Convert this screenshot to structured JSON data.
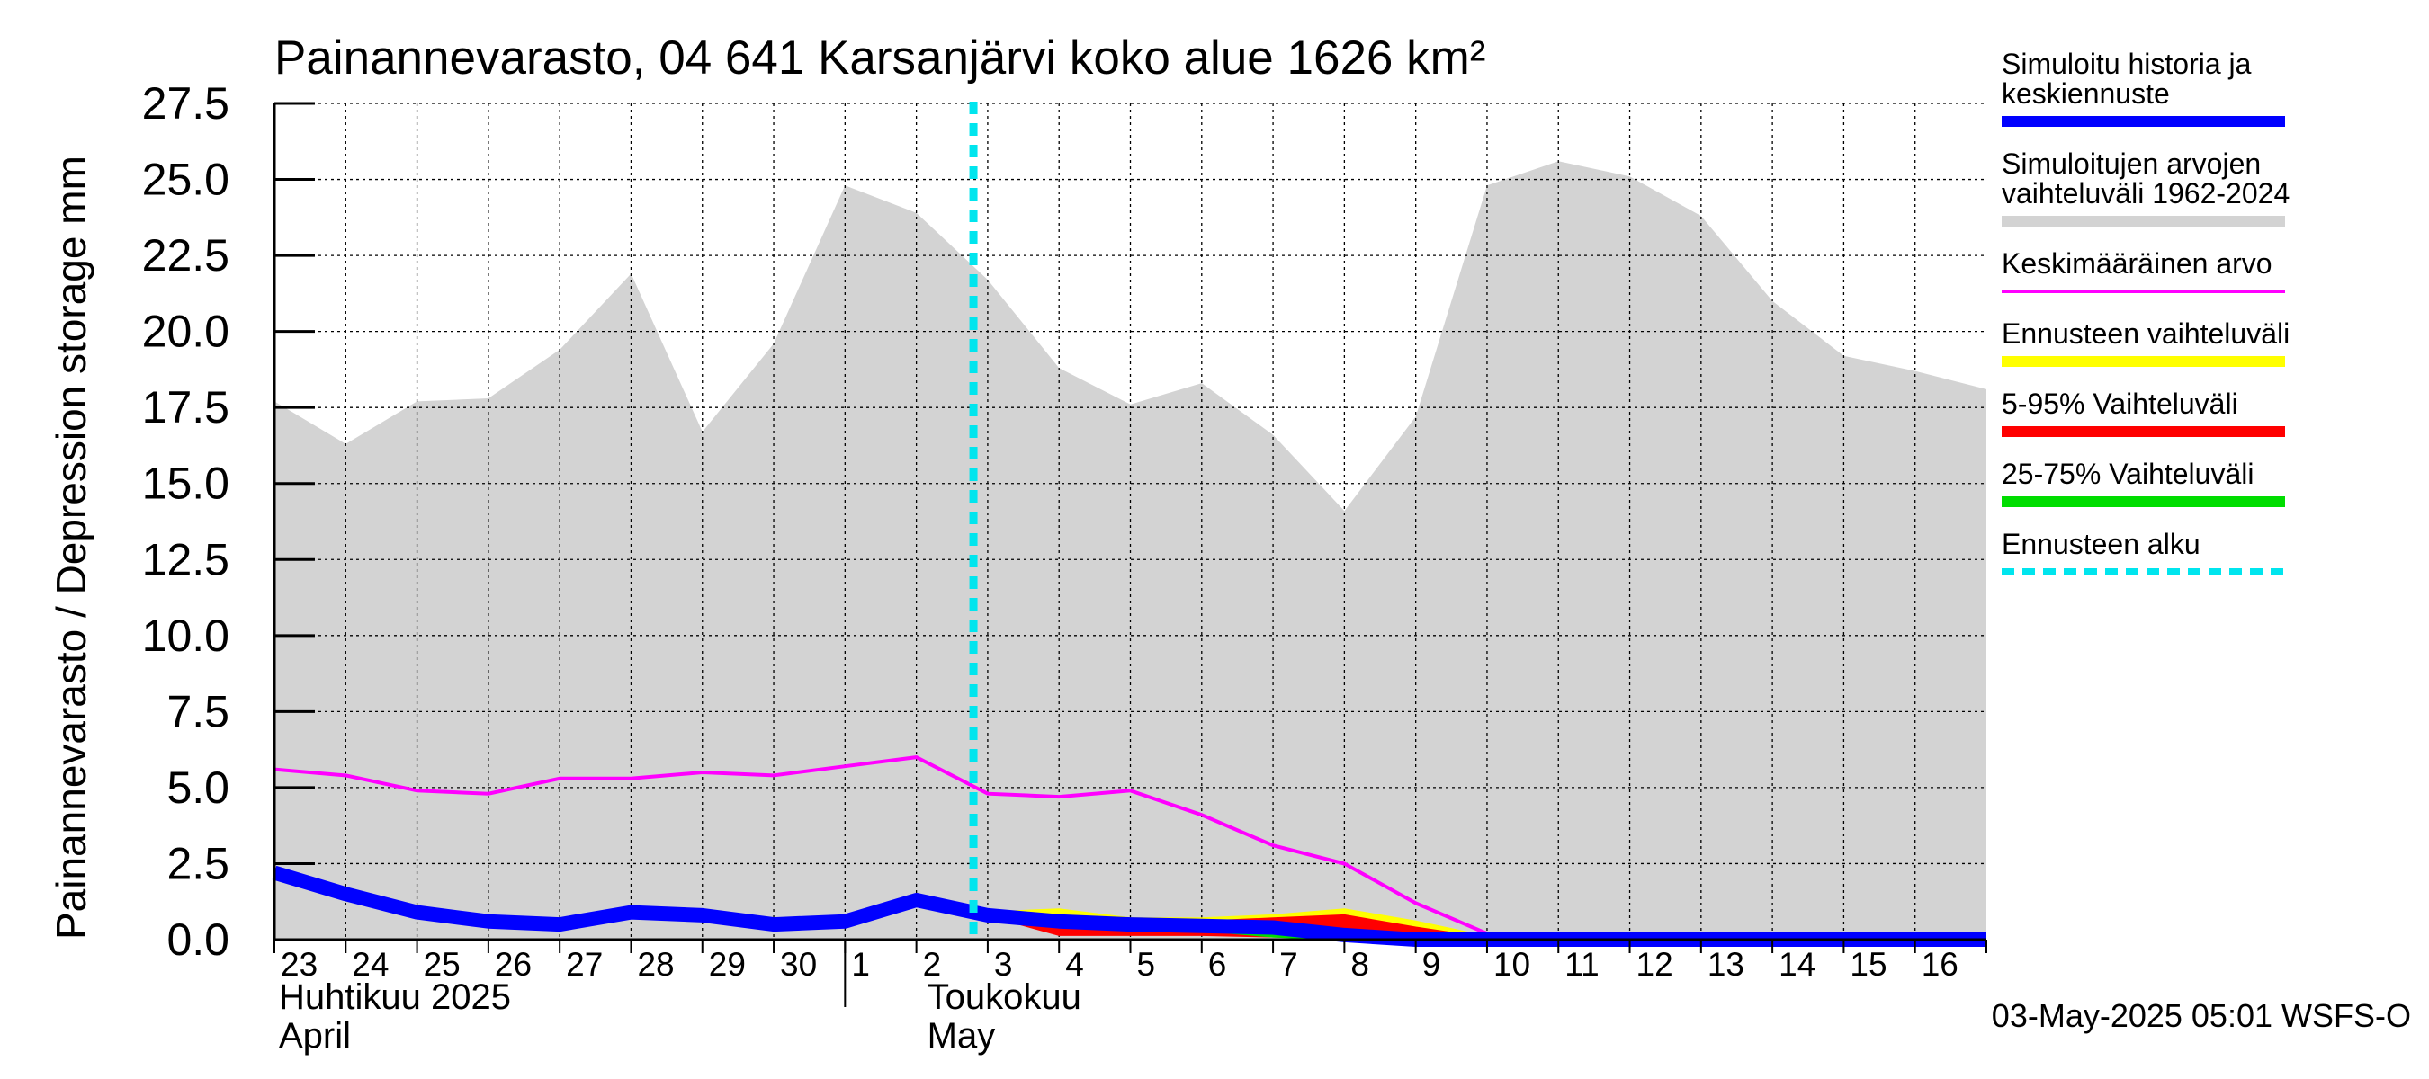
{
  "chart_data": {
    "type": "area",
    "title": "Painannevarasto, 04 641 Karsanjärvi koko alue 1626 km²",
    "ylabel": "Painannevarasto / Depression storage    mm",
    "ylim": [
      0,
      27.5
    ],
    "yticks": [
      "0.0",
      "2.5",
      "5.0",
      "7.5",
      "10.0",
      "12.5",
      "15.0",
      "17.5",
      "20.0",
      "22.5",
      "25.0",
      "27.5"
    ],
    "x_day_labels": [
      "23",
      "24",
      "25",
      "26",
      "27",
      "28",
      "29",
      "30",
      "1",
      "2",
      "3",
      "4",
      "5",
      "6",
      "7",
      "8",
      "9",
      "10",
      "11",
      "12",
      "13",
      "14",
      "15",
      "16"
    ],
    "month_labels": [
      {
        "fi": "Huhtikuu  2025",
        "en": "April"
      },
      {
        "fi": "Toukokuu",
        "en": "May"
      }
    ],
    "grid": true,
    "legend_position": "right",
    "forecast_start_index": 10,
    "series": [
      {
        "key": "range",
        "name": "Simuloitujen arvojen vaihteluväli 1962-2024",
        "color": "#d3d3d3",
        "upper": [
          17.7,
          16.3,
          17.7,
          17.8,
          19.4,
          21.9,
          16.7,
          19.6,
          24.8,
          23.9,
          21.7,
          18.8,
          17.6,
          18.3,
          16.6,
          14.1,
          17.2,
          24.8,
          25.6,
          25.1,
          23.8,
          21.0,
          19.2,
          18.7,
          18.1
        ],
        "lower": [
          0,
          0,
          0,
          0,
          0,
          0,
          0,
          0,
          0,
          0,
          0,
          0,
          0,
          0,
          0,
          0,
          0,
          0,
          0,
          0,
          0,
          0,
          0,
          0,
          0
        ]
      },
      {
        "key": "mean",
        "name": "Keskimääräinen arvo",
        "color": "#ff00ff",
        "values": [
          5.6,
          5.4,
          4.9,
          4.8,
          5.3,
          5.3,
          5.5,
          5.4,
          5.7,
          6.0,
          4.8,
          4.7,
          4.9,
          4.1,
          3.1,
          2.5,
          1.2,
          0.2,
          0.0,
          0.0,
          0.0,
          0.0,
          0.0,
          0.0,
          0.0
        ]
      },
      {
        "key": "forecast_range",
        "name": "Ennusteen vaihteluväli",
        "color": "#ffff00",
        "start_index": 10,
        "upper": [
          0.9,
          1.0,
          0.7,
          0.7,
          0.8,
          1.0,
          0.6,
          0.1,
          0.0,
          0.0,
          0.0,
          0.0,
          0.0,
          0.0,
          0.0
        ],
        "lower": [
          0.8,
          0.3,
          0.2,
          0.2,
          0.2,
          0.1,
          0.0,
          0.0,
          0.0,
          0.0,
          0.0,
          0.0,
          0.0,
          0.0,
          0.0
        ]
      },
      {
        "key": "p5_95",
        "name": "5-95% Vaihteluväli",
        "color": "#ff0000",
        "start_index": 10,
        "upper": [
          0.8,
          0.8,
          0.6,
          0.6,
          0.7,
          0.8,
          0.4,
          0.05,
          0.0,
          0.0,
          0.0,
          0.0,
          0.0,
          0.0,
          0.0
        ],
        "lower": [
          0.8,
          0.15,
          0.15,
          0.15,
          0.1,
          0.05,
          0.0,
          0.0,
          0.0,
          0.0,
          0.0,
          0.0,
          0.0,
          0.0,
          0.0
        ]
      },
      {
        "key": "p25_75",
        "name": "25-75% Vaihteluväli",
        "color": "#00dd00",
        "start_index": 10,
        "upper": [
          0.8,
          0.7,
          0.5,
          0.45,
          0.4,
          0.3,
          0.15,
          0.0,
          0.0,
          0.0,
          0.0,
          0.0,
          0.0,
          0.0,
          0.0
        ],
        "lower": [
          0.8,
          0.5,
          0.35,
          0.3,
          0.1,
          0.0,
          0.0,
          0.0,
          0.0,
          0.0,
          0.0,
          0.0,
          0.0,
          0.0,
          0.0
        ]
      },
      {
        "key": "history",
        "name": "Simuloitu historia ja keskiennuste",
        "color": "#0000ff",
        "values": [
          2.2,
          1.5,
          0.9,
          0.6,
          0.5,
          0.9,
          0.8,
          0.5,
          0.6,
          1.3,
          0.8,
          0.6,
          0.5,
          0.45,
          0.4,
          0.15,
          0.0,
          0.0,
          0.0,
          0.0,
          0.0,
          0.0,
          0.0,
          0.0,
          0.0
        ]
      }
    ],
    "forecast_marker": {
      "name": "Ennusteen alku",
      "color": "#00e5ee"
    }
  },
  "legend": [
    {
      "label_lines": [
        "Simuloitu historia ja",
        "keskiennuste"
      ],
      "color": "#0000ff",
      "style": "thick"
    },
    {
      "label_lines": [
        "Simuloitujen arvojen",
        "vaihteluväli 1962-2024"
      ],
      "color": "#d3d3d3",
      "style": "thick"
    },
    {
      "label_lines": [
        "Keskimääräinen arvo"
      ],
      "color": "#ff00ff",
      "style": "thin"
    },
    {
      "label_lines": [
        "Ennusteen vaihteluväli"
      ],
      "color": "#ffff00",
      "style": "thick"
    },
    {
      "label_lines": [
        "5-95% Vaihteluväli"
      ],
      "color": "#ff0000",
      "style": "thick"
    },
    {
      "label_lines": [
        "25-75% Vaihteluväli"
      ],
      "color": "#00dd00",
      "style": "thick"
    },
    {
      "label_lines": [
        "Ennusteen alku"
      ],
      "color": "#00e5ee",
      "style": "dashed"
    }
  ],
  "footer": "03-May-2025 05:01 WSFS-O"
}
